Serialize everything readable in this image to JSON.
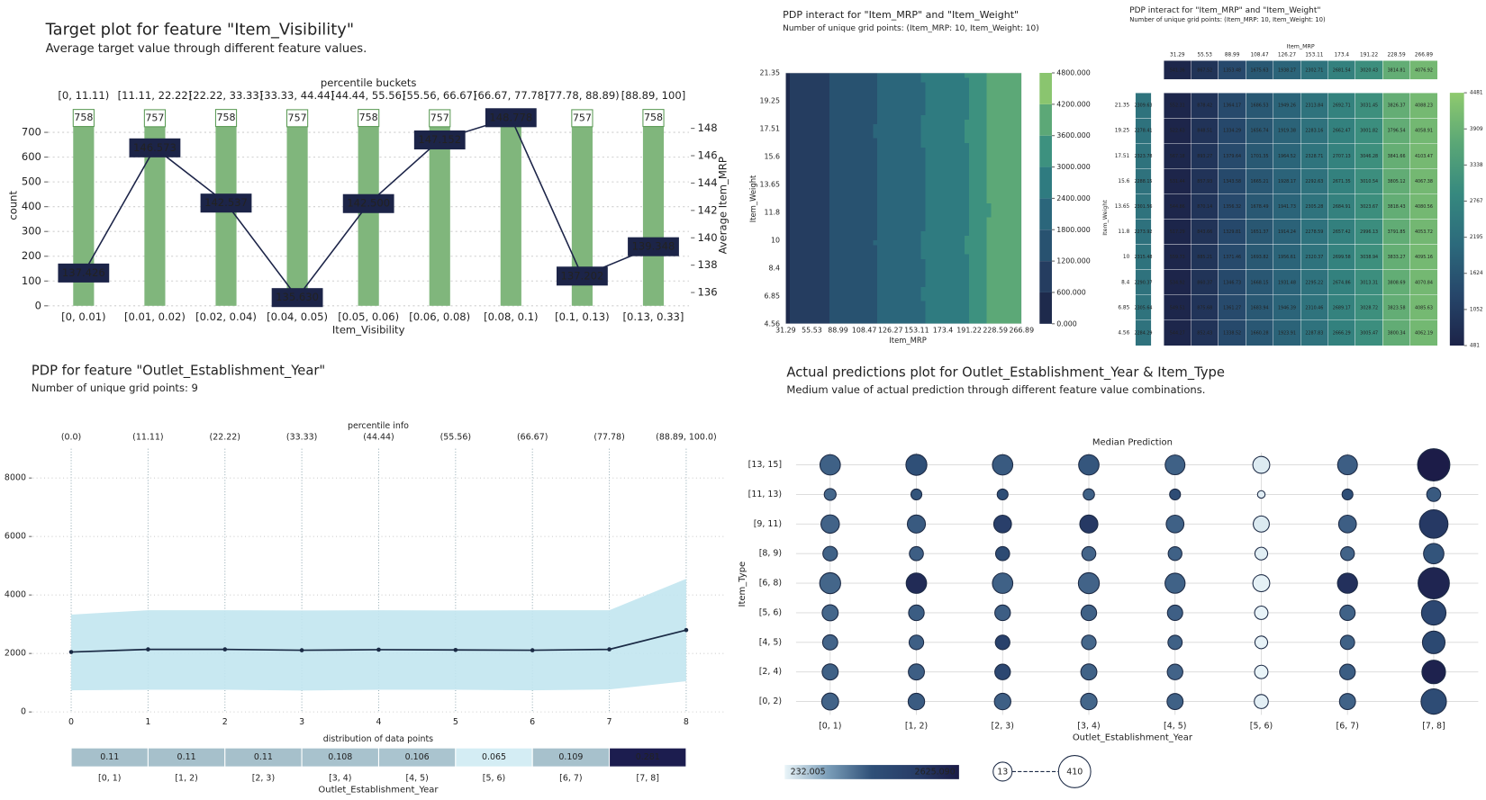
{
  "chart_data": [
    {
      "type": "target",
      "title": "Target plot for feature \"Item_Visibility\"",
      "subtitle": "Average target value through different feature values.",
      "top_label": "percentile buckets",
      "top_categories": [
        "[0, 11.11)",
        "[11.11, 22.22)",
        "[22.22, 33.33)",
        "[33.33, 44.44)",
        "[44.44, 55.56)",
        "[55.56, 66.67)",
        "[66.67, 77.78)",
        "[77.78, 88.89)",
        "[88.89, 100]"
      ],
      "categories": [
        "[0, 0.01)",
        "[0.01, 0.02)",
        "[0.02, 0.04)",
        "[0.04, 0.05)",
        "[0.05, 0.06)",
        "[0.06, 0.08)",
        "[0.08, 0.1)",
        "[0.1, 0.13)",
        "[0.13, 0.33]"
      ],
      "x_label": "Item_Visibility",
      "y_label": "count",
      "y2_label": "Average Item_MRP",
      "ylim": [
        0,
        810
      ],
      "yticks": [
        0,
        100,
        200,
        300,
        400,
        500,
        600,
        700
      ],
      "y2lim": [
        135.03,
        149.7
      ],
      "y2ticks": [
        136,
        138,
        140,
        142,
        144,
        146,
        148
      ],
      "grid": true,
      "series": [
        {
          "color": "#80b67c",
          "values": [
            758,
            757,
            758,
            757,
            758,
            757,
            758,
            757,
            758
          ]
        },
        {
          "axis": "y2",
          "color": "#1c2448",
          "values": [
            137.426,
            146.573,
            142.537,
            135.63,
            142.5,
            147.152,
            148.778,
            137.202,
            139.348
          ],
          "value_labels": [
            "137.426",
            "146.573",
            "142.537",
            "135.630",
            "142.500",
            "147.152",
            "148.778",
            "137.202",
            "139.348"
          ]
        }
      ]
    },
    {
      "type": "contour",
      "title": "PDP interact for \"Item_MRP\" and \"Item_Weight\"",
      "subtitle": "Number of unique grid points: (Item_MRP: 10, Item_Weight: 10)",
      "x_label": "Item_MRP",
      "y_label": "Item_Weight",
      "x_categories": [
        "31.29",
        "55.53",
        "88.99",
        "108.47",
        "126.27",
        "153.11",
        "173.4",
        "191.22",
        "228.59",
        "266.89"
      ],
      "y_categories": [
        "4.56",
        "6.85",
        "8.4",
        "10",
        "11.8",
        "13.65",
        "15.6",
        "17.51",
        "19.25",
        "21.35"
      ],
      "z": [
        [
          544.27,
          852.43,
          1338.52,
          1660.28,
          1923.91,
          2287.83,
          2666.29,
          3005.47,
          3800.34,
          4062.19
        ],
        [
          549.51,
          875.68,
          1361.27,
          1683.94,
          1946.39,
          2310.46,
          2689.17,
          3028.72,
          3823.58,
          4085.63
        ],
        [
          534.92,
          860.37,
          1346.73,
          1668.15,
          1931.48,
          2295.22,
          2674.86,
          3013.31,
          3808.69,
          4070.84
        ],
        [
          559.73,
          885.21,
          1371.46,
          1693.82,
          1956.61,
          2320.37,
          2699.58,
          3038.94,
          3833.27,
          4095.16
        ],
        [
          517.29,
          843.66,
          1329.81,
          1651.37,
          1914.24,
          2278.59,
          2657.42,
          2996.13,
          3791.85,
          4053.72
        ],
        [
          544.86,
          870.14,
          1356.32,
          1678.49,
          1941.73,
          2305.28,
          2684.91,
          3023.67,
          3818.43,
          4080.56
        ],
        [
          531.44,
          857.93,
          1343.58,
          1665.21,
          1928.17,
          2292.63,
          2671.35,
          3010.54,
          3805.12,
          4067.38
        ],
        [
          567.18,
          893.27,
          1379.64,
          1701.35,
          1964.52,
          2328.71,
          2707.13,
          3046.28,
          3841.66,
          4103.47
        ],
        [
          522.63,
          848.51,
          1334.29,
          1656.74,
          1919.38,
          2283.16,
          2662.47,
          3001.82,
          3796.54,
          4058.91
        ],
        [
          552.31,
          878.42,
          1364.17,
          1686.53,
          1949.26,
          2313.84,
          2692.71,
          3031.45,
          3826.37,
          4088.23
        ]
      ],
      "zticks": [
        {
          "value": 0,
          "label": "0.000"
        },
        {
          "value": 600,
          "label": "600.000"
        },
        {
          "value": 1200,
          "label": "1200.000"
        },
        {
          "value": 1800,
          "label": "1800.000"
        },
        {
          "value": 2400,
          "label": "2400.000"
        },
        {
          "value": 3000,
          "label": "3000.000"
        },
        {
          "value": 3600,
          "label": "3600.000"
        },
        {
          "value": 4200,
          "label": "4200.000"
        },
        {
          "value": 4800,
          "label": "4800.000"
        }
      ],
      "colors": [
        "#1e2a4c",
        "#253d60",
        "#285270",
        "#2b667b",
        "#2f7b80",
        "#3d917f",
        "#5ca877",
        "#8ac56f"
      ]
    },
    {
      "type": "heatmap",
      "title": "PDP interact for \"Item_MRP\" and \"Item_Weight\"",
      "subtitle": "Number of unique grid points: (Item_MRP: 10, Item_Weight: 10)",
      "x_label": "Item_MRP",
      "y_label": "Item_Weight",
      "x_categories": [
        "31.29",
        "55.53",
        "88.99",
        "108.47",
        "126.27",
        "153.11",
        "173.4",
        "191.22",
        "228.59",
        "266.89"
      ],
      "y_categories": [
        "4.56",
        "6.85",
        "8.4",
        "10",
        "11.8",
        "13.65",
        "15.6",
        "17.51",
        "19.25",
        "21.35"
      ],
      "z": [
        [
          544.27,
          852.43,
          1338.52,
          1660.28,
          1923.91,
          2287.83,
          2666.29,
          3005.47,
          3800.34,
          4062.19
        ],
        [
          549.51,
          875.68,
          1361.27,
          1683.94,
          1946.39,
          2310.46,
          2689.17,
          3028.72,
          3823.58,
          4085.63
        ],
        [
          534.92,
          860.37,
          1346.73,
          1668.15,
          1931.48,
          2295.22,
          2674.86,
          3013.31,
          3808.69,
          4070.84
        ],
        [
          559.73,
          885.21,
          1371.46,
          1693.82,
          1956.61,
          2320.37,
          2699.58,
          3038.94,
          3833.27,
          4095.16
        ],
        [
          517.29,
          843.66,
          1329.81,
          1651.37,
          1914.24,
          2278.59,
          2657.42,
          2996.13,
          3791.85,
          4053.72
        ],
        [
          544.86,
          870.14,
          1356.32,
          1678.49,
          1941.73,
          2305.28,
          2684.91,
          3023.67,
          3818.43,
          4080.56
        ],
        [
          531.44,
          857.93,
          1343.58,
          1665.21,
          1928.17,
          2292.63,
          2671.35,
          3010.54,
          3805.12,
          4067.38
        ],
        [
          567.18,
          893.27,
          1379.64,
          1701.35,
          1964.52,
          2328.71,
          2707.13,
          3046.28,
          3841.66,
          4103.47
        ],
        [
          522.63,
          848.51,
          1334.29,
          1656.74,
          1919.38,
          2283.16,
          2662.47,
          3001.82,
          3796.54,
          4058.91
        ],
        [
          552.31,
          878.42,
          1364.17,
          1686.53,
          1949.26,
          2313.84,
          2692.71,
          3031.45,
          3826.37,
          4088.23
        ]
      ],
      "x_margin": [
        541.36,
        867.52,
        1353.48,
        1675.63,
        1938.27,
        2302.71,
        2681.54,
        3020.43,
        3814.81,
        4076.92
      ],
      "y_margin": [
        2284.29,
        2305.64,
        2290.37,
        2315.48,
        2273.92,
        2301.56,
        2288.15,
        2323.78,
        2278.41,
        2309.63
      ],
      "zticks": [
        481,
        1052,
        1624,
        2195,
        2767,
        3338,
        3909,
        4481
      ],
      "colormap": [
        "#1c2348",
        "#26466a",
        "#2c6a7c",
        "#36897f",
        "#5aa776",
        "#8fca6e"
      ]
    },
    {
      "type": "pdp",
      "title": "PDP for feature \"Outlet_Establishment_Year\"",
      "subtitle": "Number of unique grid points: 9",
      "top_label": "percentile info",
      "top_categories": [
        "(0.0)",
        "(11.11)",
        "(22.22)",
        "(33.33)",
        "(44.44)",
        "(55.56)",
        "(66.67)",
        "(77.78)",
        "(88.89, 100.0)"
      ],
      "x": [
        0,
        1,
        2,
        3,
        4,
        5,
        6,
        7,
        8
      ],
      "xlim": [
        -0.5,
        8.5
      ],
      "xticks": [
        0,
        1,
        2,
        3,
        4,
        5,
        6,
        7,
        8
      ],
      "ylim": [
        0,
        9000
      ],
      "yticks": [
        0,
        2000,
        4000,
        6000,
        8000
      ],
      "grid": true,
      "line_color": "#1a2a45",
      "band_color": "#c2e5f0",
      "values": [
        2050,
        2140,
        2140,
        2110,
        2130,
        2120,
        2110,
        2140,
        2800
      ],
      "upper": [
        3330,
        3480,
        3480,
        3470,
        3480,
        3470,
        3480,
        3480,
        4550
      ],
      "lower": [
        740,
        760,
        760,
        730,
        760,
        760,
        740,
        770,
        1050
      ],
      "distribution": {
        "title": "distribution of data points",
        "categories": [
          "[0, 1)",
          "[1, 2)",
          "[2, 3)",
          "[3, 4)",
          "[4, 5)",
          "[5, 6)",
          "[6, 7)",
          "[7, 8]"
        ],
        "values": [
          0.11,
          0.11,
          0.11,
          0.108,
          0.106,
          0.065,
          0.109,
          0.281
        ],
        "colormap": [
          "#d4edf4",
          "#8aa5b3",
          "#4b6283",
          "#1c1d4f"
        ]
      },
      "x_label": "Outlet_Establishment_Year"
    },
    {
      "type": "bubble",
      "title": "Actual predictions plot for Outlet_Establishment_Year & Item_Type",
      "subtitle": "Medium value of actual prediction through different feature value combinations.",
      "top_label": "Median Prediction",
      "x_categories": [
        "[0, 1)",
        "[1, 2)",
        "[2, 3)",
        "[3, 4)",
        "[4, 5)",
        "[5, 6)",
        "[6, 7)",
        "[7, 8]"
      ],
      "y_categories": [
        "[0, 2)",
        "[2, 4)",
        "[4, 5)",
        "[5, 6)",
        "[6, 8)",
        "[8, 9)",
        "[9, 11)",
        "[11, 13)",
        "[13, 15]"
      ],
      "x_label": "Outlet_Establishment_Year",
      "y_label": "Item_Type",
      "values": [
        [
          1280,
          1340,
          1310,
          1260,
          1300,
          270,
          1290,
          1550
        ],
        [
          1300,
          1320,
          1700,
          1290,
          1280,
          240,
          1330,
          2500
        ],
        [
          1270,
          1310,
          1900,
          1250,
          1300,
          250,
          1300,
          1650
        ],
        [
          1250,
          1330,
          1320,
          1300,
          1310,
          245,
          1290,
          1700
        ],
        [
          1260,
          2350,
          1300,
          1280,
          1290,
          260,
          2250,
          2450
        ],
        [
          1290,
          1320,
          1600,
          1270,
          1300,
          280,
          1280,
          1400
        ],
        [
          1280,
          1350,
          1950,
          2100,
          1300,
          310,
          1320,
          2100
        ],
        [
          1250,
          1400,
          1500,
          1300,
          1550,
          290,
          1480,
          1350
        ],
        [
          1300,
          1450,
          1350,
          1380,
          1300,
          300,
          1320,
          2600
        ]
      ],
      "sizes": [
        [
          70,
          65,
          65,
          65,
          60,
          40,
          60,
          220
        ],
        [
          60,
          60,
          55,
          60,
          55,
          35,
          55,
          180
        ],
        [
          50,
          45,
          45,
          45,
          42,
          30,
          42,
          160
        ],
        [
          60,
          55,
          55,
          55,
          52,
          35,
          52,
          200
        ],
        [
          130,
          120,
          120,
          130,
          115,
          70,
          115,
          380
        ],
        [
          45,
          40,
          40,
          40,
          38,
          30,
          38,
          120
        ],
        [
          90,
          85,
          80,
          85,
          80,
          60,
          80,
          300
        ],
        [
          25,
          20,
          20,
          22,
          20,
          13,
          20,
          40
        ],
        [
          120,
          130,
          120,
          120,
          110,
          70,
          110,
          410
        ]
      ],
      "color_legend": [
        232.005,
        {
          "value": 2625.09,
          "label": "2625.090"
        }
      ],
      "size_legend": [
        13,
        410
      ],
      "colormap": [
        "#eaf5f9",
        "#7a9db8",
        "#2f5078",
        "#283d68",
        "#1b1b47"
      ]
    }
  ]
}
